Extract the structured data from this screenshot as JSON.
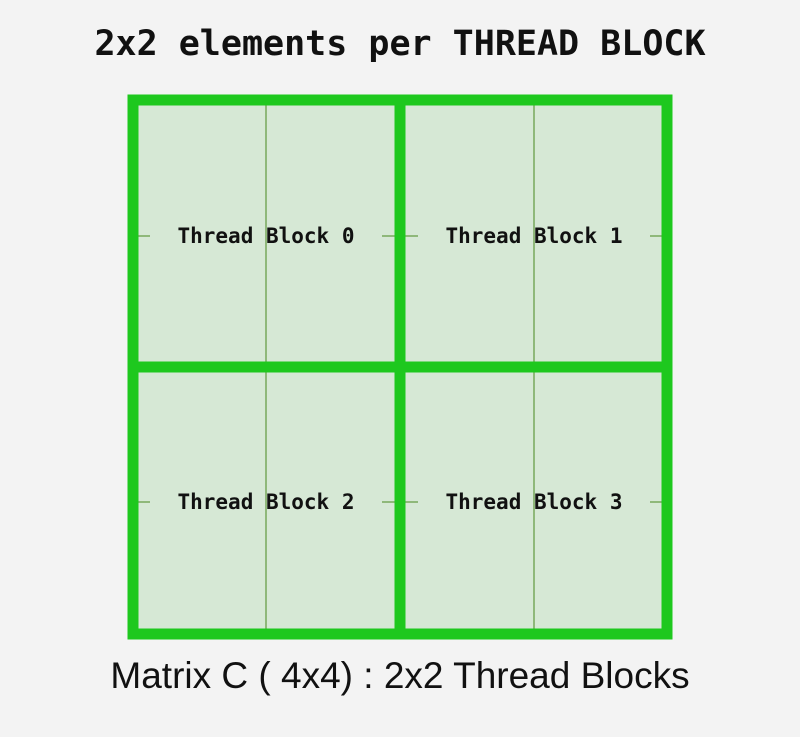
{
  "title": "2x2 elements per THREAD BLOCK",
  "caption": "Matrix C ( 4x4) : 2x2 Thread Blocks",
  "colors": {
    "background": "#f3f3f3",
    "cell_fill": "#d6e8d5",
    "block_border": "#1ec81e",
    "cell_line": "#8fb87a",
    "text": "#111111"
  },
  "thread_blocks": [
    {
      "label": "Thread Block 0"
    },
    {
      "label": "Thread Block 1"
    },
    {
      "label": "Thread Block 2"
    },
    {
      "label": "Thread Block 3"
    }
  ]
}
